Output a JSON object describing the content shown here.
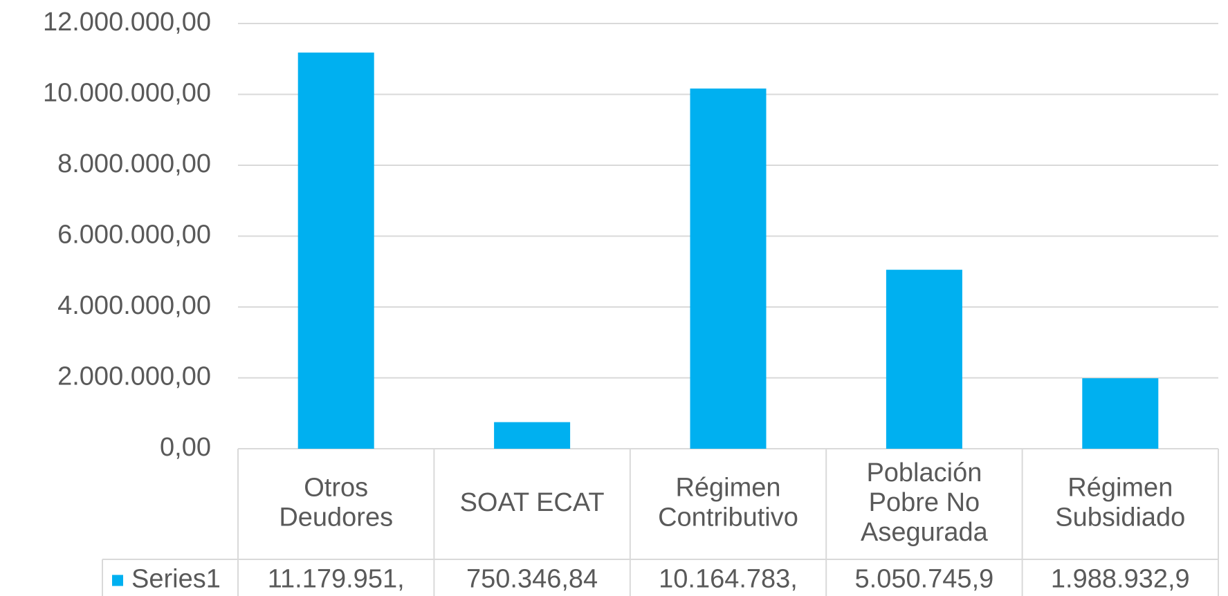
{
  "chart_data": {
    "type": "bar",
    "categories": [
      "Otros Deudores",
      "SOAT ECAT",
      "Régimen Contributivo",
      "Población Pobre No Asegurada",
      "Régimen Subsidiado"
    ],
    "series": [
      {
        "name": "Series1",
        "color": "#00b0f0",
        "values": [
          11179951,
          750346.84,
          10164783,
          5050745.9,
          1988932.9
        ],
        "value_labels": [
          "11.179.951,",
          "750.346,84",
          "10.164.783,",
          "5.050.745,9",
          "1.988.932,9"
        ]
      }
    ],
    "ylim": [
      0,
      12000000
    ],
    "yticks": [
      {
        "value": 0,
        "label": "0,00"
      },
      {
        "value": 2000000,
        "label": "2.000.000,00"
      },
      {
        "value": 4000000,
        "label": "4.000.000,00"
      },
      {
        "value": 6000000,
        "label": "6.000.000,00"
      },
      {
        "value": 8000000,
        "label": "8.000.000,00"
      },
      {
        "value": 10000000,
        "label": "10.000.000,00"
      },
      {
        "value": 12000000,
        "label": "12.000.000,00"
      }
    ],
    "grid": true
  }
}
